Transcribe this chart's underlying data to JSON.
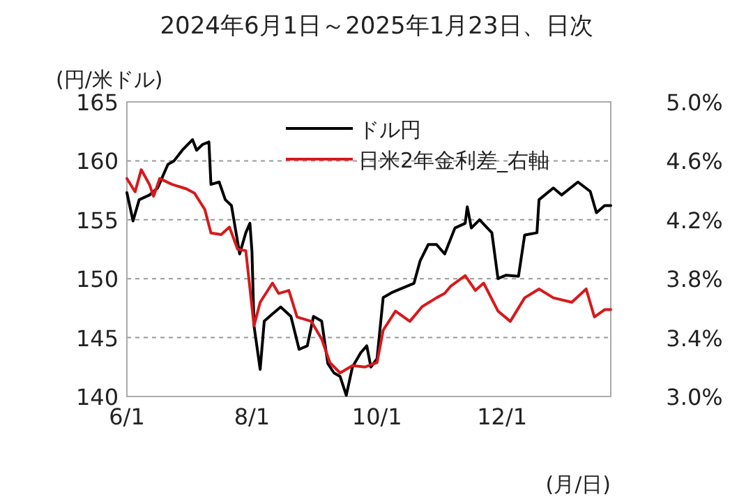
{
  "chart_data": {
    "type": "line",
    "title": "2024年6月1日～2025年1月23日、日次",
    "ylabel": "(円/米ドル)",
    "xlabel": "(月/日)",
    "xlim": [
      "2024-06-01",
      "2025-01-23"
    ],
    "xticks": [
      {
        "value": "2024-06-01",
        "label": "6/1"
      },
      {
        "value": "2024-08-01",
        "label": "8/1"
      },
      {
        "value": "2024-10-01",
        "label": "10/1"
      },
      {
        "value": "2024-12-01",
        "label": "12/1"
      }
    ],
    "ylim": [
      140,
      165
    ],
    "yticks": [
      140,
      145,
      150,
      155,
      160,
      165
    ],
    "y2lim": [
      3.0,
      5.0
    ],
    "y2ticks": [
      {
        "value": 3.0,
        "label": "3.0%"
      },
      {
        "value": 3.4,
        "label": "3.4%"
      },
      {
        "value": 3.8,
        "label": "3.8%"
      },
      {
        "value": 4.2,
        "label": "4.2%"
      },
      {
        "value": 4.6,
        "label": "4.6%"
      },
      {
        "value": 5.0,
        "label": "5.0%"
      }
    ],
    "grid": "y",
    "legend": "top",
    "line_style": "solid",
    "marker": "none",
    "series": [
      {
        "name": "ドル円",
        "color": "#000000",
        "x": [
          "2024-06-01",
          "2024-06-04",
          "2024-06-07",
          "2024-06-12",
          "2024-06-16",
          "2024-06-21",
          "2024-06-24",
          "2024-06-28",
          "2024-07-03",
          "2024-07-05",
          "2024-07-08",
          "2024-07-11",
          "2024-07-12",
          "2024-07-16",
          "2024-07-19",
          "2024-07-22",
          "2024-07-26",
          "2024-07-29",
          "2024-07-31",
          "2024-08-01",
          "2024-08-02",
          "2024-08-05",
          "2024-08-07",
          "2024-08-11",
          "2024-08-15",
          "2024-08-20",
          "2024-08-24",
          "2024-08-28",
          "2024-08-31",
          "2024-09-04",
          "2024-09-07",
          "2024-09-10",
          "2024-09-13",
          "2024-09-16",
          "2024-09-19",
          "2024-09-23",
          "2024-09-26",
          "2024-09-28",
          "2024-10-01",
          "2024-10-04",
          "2024-10-08",
          "2024-10-12",
          "2024-10-19",
          "2024-10-22",
          "2024-10-26",
          "2024-10-30",
          "2024-11-03",
          "2024-11-08",
          "2024-11-13",
          "2024-11-14",
          "2024-11-16",
          "2024-11-20",
          "2024-11-26",
          "2024-11-29",
          "2024-12-03",
          "2024-12-09",
          "2024-12-12",
          "2024-12-18",
          "2024-12-19",
          "2024-12-26",
          "2024-12-30",
          "2025-01-07",
          "2025-01-13",
          "2025-01-16",
          "2025-01-20",
          "2025-01-23"
        ],
        "values": [
          157.3,
          154.9,
          156.7,
          157.1,
          157.7,
          159.7,
          160.0,
          160.9,
          161.8,
          160.9,
          161.4,
          161.6,
          158.0,
          158.2,
          156.7,
          156.2,
          152.1,
          153.9,
          154.7,
          152.3,
          146.0,
          142.3,
          146.4,
          147.0,
          147.6,
          146.8,
          144.0,
          144.3,
          146.8,
          146.4,
          142.8,
          142.0,
          141.7,
          140.1,
          142.5,
          143.7,
          144.3,
          142.5,
          143.2,
          148.4,
          148.8,
          149.1,
          149.6,
          151.5,
          152.9,
          152.9,
          152.1,
          154.3,
          154.7,
          156.1,
          154.3,
          155.0,
          153.9,
          150.0,
          150.3,
          150.2,
          153.7,
          153.9,
          156.7,
          157.7,
          157.1,
          158.2,
          157.4,
          155.6,
          156.2,
          156.2
        ]
      },
      {
        "name": "日米2年金利差_右軸",
        "color": "#d7191c",
        "axis": "y2",
        "x": [
          "2024-06-01",
          "2024-06-05",
          "2024-06-08",
          "2024-06-12",
          "2024-06-14",
          "2024-06-17",
          "2024-06-23",
          "2024-06-30",
          "2024-07-04",
          "2024-07-09",
          "2024-07-12",
          "2024-07-17",
          "2024-07-21",
          "2024-07-25",
          "2024-07-29",
          "2024-08-02",
          "2024-08-05",
          "2024-08-11",
          "2024-08-14",
          "2024-08-19",
          "2024-08-23",
          "2024-08-30",
          "2024-09-04",
          "2024-09-08",
          "2024-09-13",
          "2024-09-19",
          "2024-09-25",
          "2024-10-01",
          "2024-10-04",
          "2024-10-10",
          "2024-10-17",
          "2024-10-23",
          "2024-10-30",
          "2024-11-03",
          "2024-11-06",
          "2024-11-13",
          "2024-11-18",
          "2024-11-22",
          "2024-11-29",
          "2024-12-05",
          "2024-12-12",
          "2024-12-19",
          "2024-12-26",
          "2025-01-04",
          "2025-01-11",
          "2025-01-15",
          "2025-01-20",
          "2025-01-23"
        ],
        "values": [
          4.48,
          4.39,
          4.54,
          4.44,
          4.36,
          4.48,
          4.44,
          4.41,
          4.38,
          4.27,
          4.11,
          4.1,
          4.15,
          4.0,
          3.99,
          3.48,
          3.64,
          3.77,
          3.7,
          3.72,
          3.54,
          3.51,
          3.39,
          3.23,
          3.16,
          3.21,
          3.2,
          3.23,
          3.45,
          3.58,
          3.51,
          3.61,
          3.67,
          3.7,
          3.75,
          3.82,
          3.72,
          3.77,
          3.58,
          3.51,
          3.67,
          3.73,
          3.67,
          3.64,
          3.73,
          3.54,
          3.59,
          3.59
        ]
      }
    ]
  }
}
